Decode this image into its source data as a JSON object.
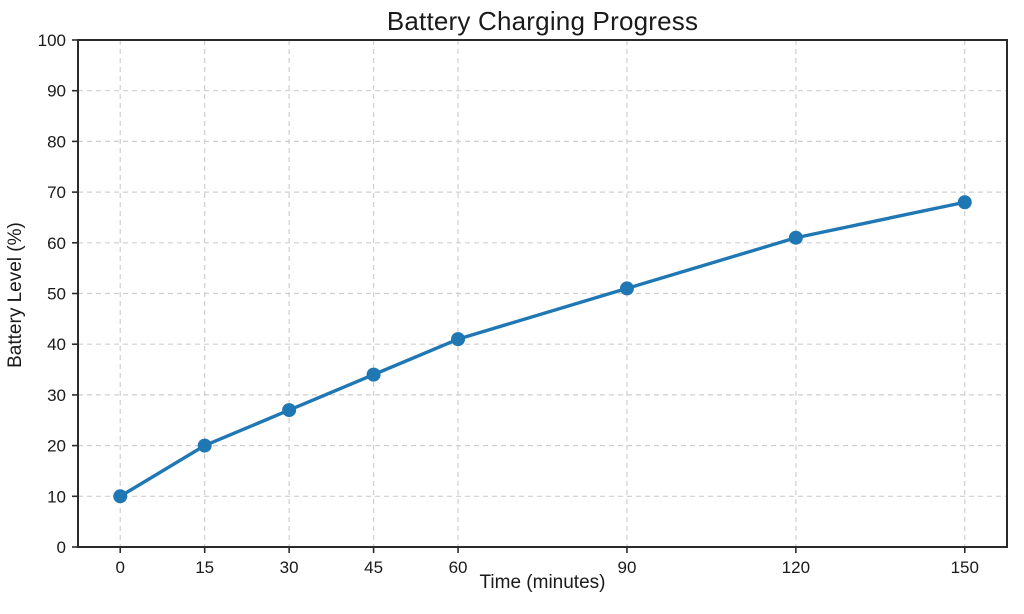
{
  "chart_data": {
    "type": "line",
    "title": "Battery Charging Progress",
    "xlabel": "Time (minutes)",
    "ylabel": "Battery Level (%)",
    "x": [
      0,
      15,
      30,
      45,
      60,
      90,
      120,
      150
    ],
    "values": [
      10,
      20,
      27,
      34,
      41,
      51,
      61,
      68
    ],
    "series": [
      {
        "name": "Battery Level",
        "x": [
          0,
          15,
          30,
          45,
          60,
          90,
          120,
          150
        ],
        "values": [
          10,
          20,
          27,
          34,
          41,
          51,
          61,
          68
        ]
      }
    ],
    "xticks": [
      0,
      15,
      30,
      45,
      60,
      90,
      120,
      150
    ],
    "yticks": [
      0,
      10,
      20,
      30,
      40,
      50,
      60,
      70,
      80,
      90,
      100
    ],
    "xlim": [
      -7.5,
      157.5
    ],
    "ylim": [
      0,
      100
    ],
    "grid": true,
    "grid_style": "dashed",
    "legend": "none",
    "colors": {
      "line": "#1f77b4",
      "marker": "#1f77b4",
      "grid": "#cfcfcf",
      "spine": "#2a2a2a",
      "text": "#1a1a1a",
      "background": "#ffffff"
    }
  }
}
